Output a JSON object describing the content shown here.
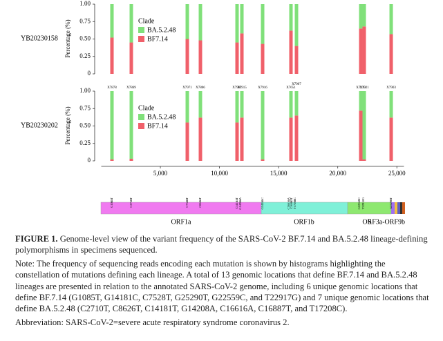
{
  "figure": {
    "type": "bar",
    "xlim": [
      0,
      25600
    ],
    "xticks": [
      {
        "value": 5000,
        "label": "5,000"
      },
      {
        "value": 10000,
        "label": "10,000"
      },
      {
        "value": 15000,
        "label": "15,000"
      },
      {
        "value": 20000,
        "label": "20,000"
      },
      {
        "value": 25000,
        "label": "25,000"
      }
    ],
    "x": [
      906,
      2542,
      7277,
      8387,
      11485,
      11894,
      13648,
      16044,
      16512,
      21948,
      22240,
      24520
    ],
    "panels": [
      {
        "label": "YB20230158",
        "ylabel": "Percentage (%)",
        "legend_title": "Clade",
        "ylim": [
          0,
          1
        ],
        "yticks": [
          0,
          0.25,
          {
            "value": 0.5,
            "label": "0.50"
          },
          0.75,
          {
            "value": 1,
            "label": "1.00"
          }
        ],
        "series": [
          {
            "name": "BF7.14",
            "color": "#f0606a",
            "values": [
              0.52,
              0.45,
              0.5,
              0.48,
              0.45,
              0.58,
              0.43,
              0.62,
              0.4,
              0.65,
              0.68,
              0.57
            ]
          },
          {
            "name": "BA.5.2.48",
            "color": "#80e07a",
            "values": [
              0.48,
              0.55,
              0.5,
              0.52,
              0.55,
              0.42,
              0.57,
              0.38,
              0.6,
              0.35,
              0.32,
              0.43
            ]
          }
        ]
      },
      {
        "label": "YB20230202",
        "ylabel": "Percentage (%)",
        "legend_title": "Clade",
        "ylim": [
          0,
          1
        ],
        "yticks": [
          0,
          0.25,
          {
            "value": 0.5,
            "label": "0.50"
          },
          0.75,
          {
            "value": 1,
            "label": "1.00"
          }
        ],
        "bar_labels": [
          "X7878",
          "X7869",
          "X7971",
          "X7806",
          "X7991",
          "X7915",
          "X7916",
          "X7651",
          "X7907",
          "X7210",
          "X7921",
          "X7903"
        ],
        "series": [
          {
            "name": "BF7.14",
            "color": "#f0606a",
            "values": [
              0.02,
              0.03,
              0.55,
              0.62,
              0.55,
              0.62,
              0.02,
              0.62,
              0.65,
              0.72,
              0.02,
              0.62
            ]
          },
          {
            "name": "BA.5.2.48",
            "color": "#80e07a",
            "values": [
              0.98,
              0.97,
              0.45,
              0.38,
              0.45,
              0.38,
              0.98,
              0.38,
              0.35,
              0.28,
              0.98,
              0.38
            ]
          }
        ]
      }
    ],
    "genes": [
      "ORF1a",
      "ORF1b",
      "S",
      "ORF3a-ORF9b"
    ],
    "sites": [
      "G1085T",
      "C2710T",
      "C7528T",
      "C8626T",
      "C14181T",
      "G14208A",
      "G14181C",
      "C16616A",
      "C16887T",
      "T17208C",
      "G22559C",
      "T22917G",
      "G25290T"
    ]
  },
  "caption": {
    "label": "FIGURE 1.",
    "title": "Genome-level view of the variant frequency of the SARS-CoV-2 BF.7.14 and BA.5.2.48 lineage-defining polymorphisms in specimens sequenced.",
    "note": "Note: The frequency of sequencing reads encoding each mutation is shown by histograms highlighting the constellation of mutations defining each lineage. A total of 13 genomic locations that define BF.7.14 and BA.5.2.48 lineages are presented in relation to the annotated SARS-CoV-2 genome, including 6 unique genomic locations that define BF.7.14 (G1085T, G14181C, C7528T, G25290T, G22559C, and T22917G) and 7 unique genomic locations that define BA.5.2.48 (C2710T, C8626T, C14181T, G14208A, C16616A, C16887T, and T17208C).",
    "abbreviation": "Abbreviation: SARS-CoV-2=severe acute respiratory syndrome coronavirus 2."
  }
}
